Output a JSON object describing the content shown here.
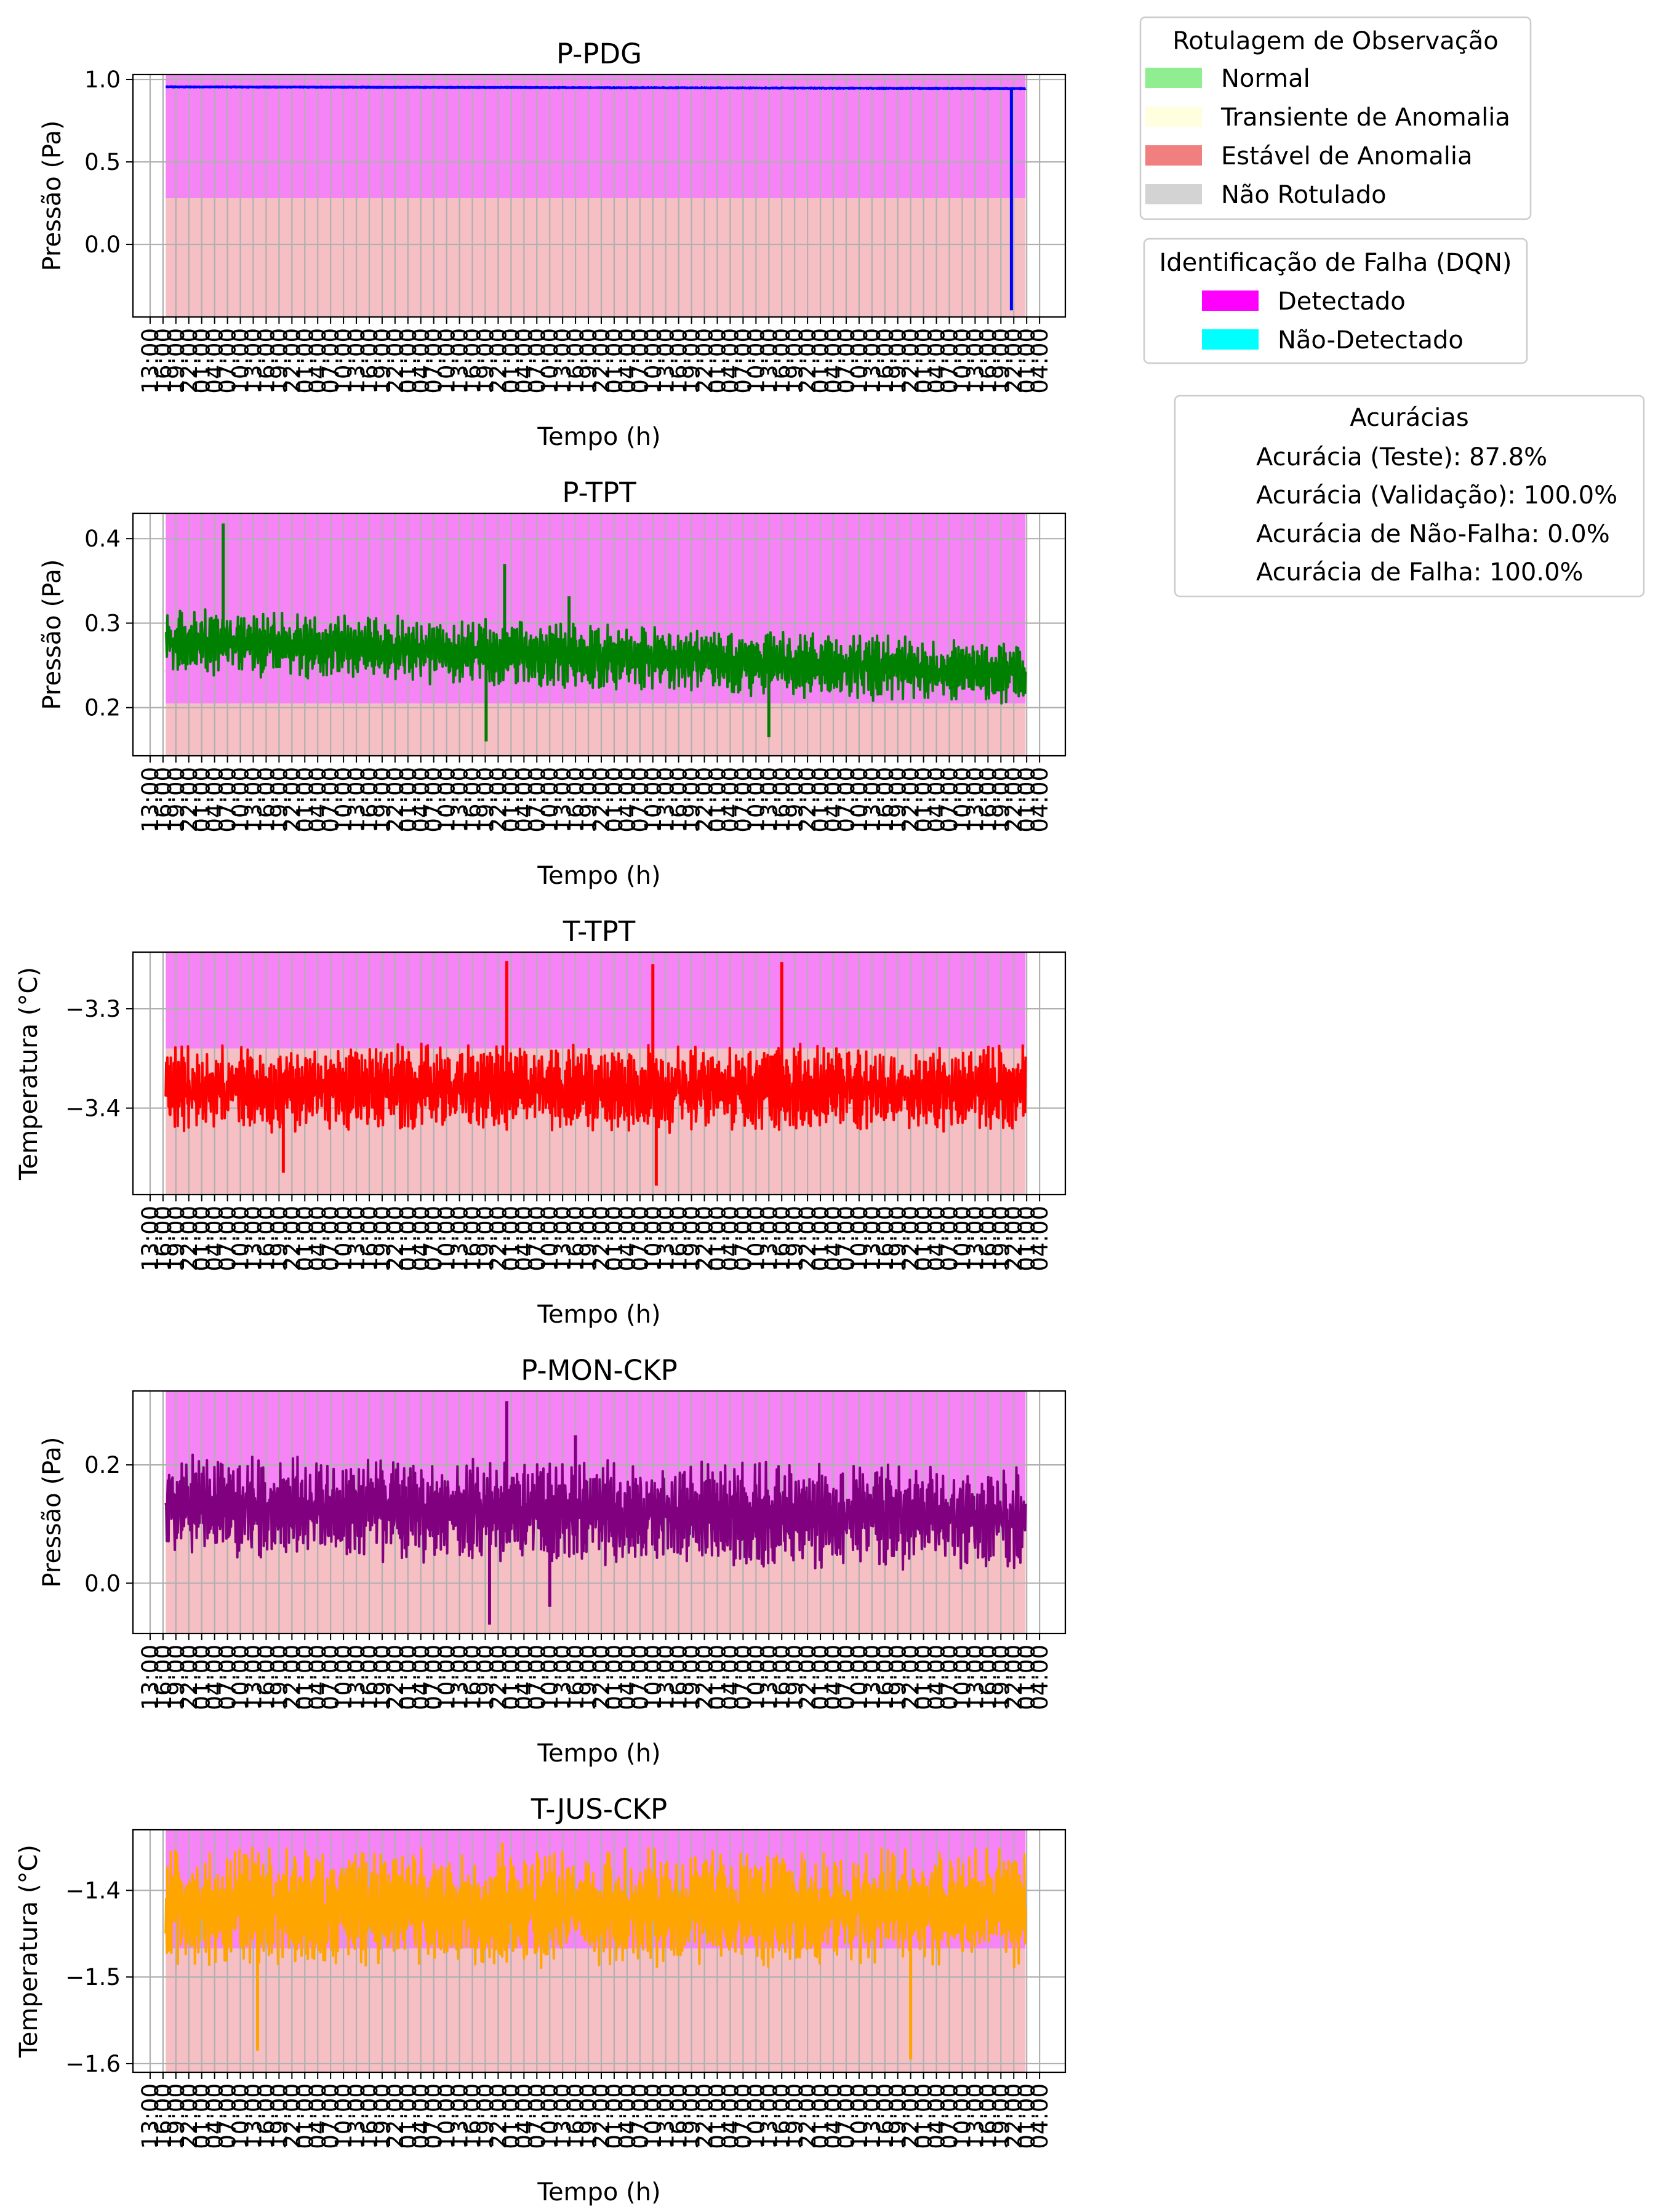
{
  "chart_data": [
    {
      "type": "line",
      "title": "P-PDG",
      "xlabel": "Tempo (h)",
      "ylabel": "Pressão (Pa)",
      "ylim": [
        -0.44,
        1.03
      ],
      "yticks": [
        0.0,
        0.5,
        1.0
      ],
      "ytick_labels": [
        "0.0",
        "0.5",
        "1.0"
      ],
      "color": "#0000ff",
      "observation_boundary": 0.28,
      "series": [
        {
          "x_range": [
            16.62,
            216.75
          ],
          "mean_start": 0.955,
          "mean_end": 0.945,
          "amplitude": 0.003,
          "spikes": [
            {
              "x": 213.45,
              "y": -0.4
            }
          ]
        }
      ]
    },
    {
      "type": "line",
      "title": "P-TPT",
      "xlabel": "Tempo (h)",
      "ylabel": "Pressão (Pa)",
      "ylim": [
        0.143,
        0.43
      ],
      "yticks": [
        0.2,
        0.3,
        0.4
      ],
      "ytick_labels": [
        "0.2",
        "0.3",
        "0.4"
      ],
      "color": "#008000",
      "observation_boundary": 0.205,
      "series": [
        {
          "x_range": [
            16.62,
            216.75
          ],
          "mean_start": 0.28,
          "mean_end": 0.24,
          "amplitude": 0.04,
          "spikes": [
            {
              "x": 30.0,
              "y": 0.418
            },
            {
              "x": 95.5,
              "y": 0.37
            },
            {
              "x": 110.5,
              "y": 0.332
            },
            {
              "x": 91.2,
              "y": 0.16
            },
            {
              "x": 157.0,
              "y": 0.165
            }
          ]
        }
      ]
    },
    {
      "type": "line",
      "title": "T-TPT",
      "xlabel": "Tempo (h)",
      "ylabel": "Temperatura (°C)",
      "ylim": [
        -3.487,
        -3.243
      ],
      "yticks": [
        -3.4,
        -3.3
      ],
      "ytick_labels": [
        "−3.4",
        "−3.3"
      ],
      "color": "#ff0000",
      "observation_boundary": -3.34,
      "series": [
        {
          "x_range": [
            16.62,
            216.75
          ],
          "mean_start": -3.38,
          "mean_end": -3.38,
          "amplitude": 0.045,
          "spikes": [
            {
              "x": 96.0,
              "y": -3.252
            },
            {
              "x": 160.0,
              "y": -3.253
            },
            {
              "x": 130.0,
              "y": -3.255
            },
            {
              "x": 130.8,
              "y": -3.478
            },
            {
              "x": 44.0,
              "y": -3.465
            }
          ]
        }
      ]
    },
    {
      "type": "line",
      "title": "P-MON-CKP",
      "xlabel": "Tempo (h)",
      "ylabel": "Pressão (Pa)",
      "ylim": [
        -0.085,
        0.325
      ],
      "yticks": [
        0.0,
        0.2
      ],
      "ytick_labels": [
        "0.0",
        "0.2"
      ],
      "color": "#800080",
      "observation_boundary": 0.11,
      "series": [
        {
          "x_range": [
            16.62,
            216.75
          ],
          "mean_start": 0.13,
          "mean_end": 0.11,
          "amplitude": 0.09,
          "spikes": [
            {
              "x": 96.0,
              "y": 0.308
            },
            {
              "x": 92.0,
              "y": -0.07
            },
            {
              "x": 112.0,
              "y": 0.25
            },
            {
              "x": 106.0,
              "y": -0.04
            }
          ]
        }
      ]
    },
    {
      "type": "line",
      "title": "T-JUS-CKP",
      "xlabel": "Tempo (h)",
      "ylabel": "Temperatura (°C)",
      "ylim": [
        -1.61,
        -1.33
      ],
      "yticks": [
        -1.6,
        -1.5,
        -1.4
      ],
      "ytick_labels": [
        "−1.6",
        "−1.5",
        "−1.4"
      ],
      "color": "#ffa500",
      "observation_boundary": -1.467,
      "series": [
        {
          "x_range": [
            16.62,
            216.75
          ],
          "mean_start": -1.42,
          "mean_end": -1.42,
          "amplitude": 0.07,
          "spikes": [
            {
              "x": 190.0,
              "y": -1.595
            },
            {
              "x": 38.0,
              "y": -1.585
            },
            {
              "x": 95.0,
              "y": -1.345
            }
          ]
        }
      ]
    }
  ],
  "x_axis": {
    "range": [
      9.0,
      226.0
    ],
    "ticks": [
      13,
      16,
      19,
      22,
      25,
      28,
      31,
      34,
      37,
      40,
      43,
      46,
      49,
      52,
      55,
      58,
      61,
      64,
      67,
      70,
      73,
      76,
      79,
      82,
      85,
      88,
      91,
      94,
      97,
      100,
      103,
      106,
      109,
      112,
      115,
      118,
      121,
      124,
      127,
      130,
      133,
      136,
      139,
      142,
      145,
      148,
      151,
      154,
      157,
      160,
      163,
      166,
      169,
      172,
      175,
      178,
      181,
      184,
      187,
      190,
      193,
      196,
      199,
      202,
      205,
      208,
      211,
      214,
      217,
      220
    ],
    "tick_labels": [
      "13:00",
      "16:00",
      "19:00",
      "22:00",
      "01:00",
      "04:00",
      "07:00",
      "10:00",
      "13:00",
      "16:00",
      "19:00",
      "22:00",
      "01:00",
      "04:00",
      "07:00",
      "10:00",
      "13:00",
      "16:00",
      "19:00",
      "22:00",
      "01:00",
      "04:00",
      "07:00",
      "10:00",
      "13:00",
      "16:00",
      "19:00",
      "22:00",
      "01:00",
      "04:00",
      "07:00",
      "10:00",
      "13:00",
      "16:00",
      "19:00",
      "22:00",
      "01:00",
      "04:00",
      "07:00",
      "10:00",
      "13:00",
      "16:00",
      "19:00",
      "22:00",
      "01:00",
      "04:00",
      "07:00",
      "10:00",
      "13:00",
      "16:00",
      "19:00",
      "22:00",
      "01:00",
      "04:00",
      "07:00",
      "10:00",
      "13:00",
      "16:00",
      "19:00",
      "22:00",
      "01:00",
      "04:00",
      "07:00",
      "10:00",
      "13:00",
      "16:00",
      "19:00",
      "22:00",
      "01:00",
      "04:00"
    ],
    "visible_label_count": 56,
    "shaded_range": [
      16.62,
      216.75
    ],
    "grid": true
  },
  "legend_observation": {
    "title": "Rotulagem de Observação",
    "entries": [
      {
        "label": "Normal",
        "color": "#90ee90"
      },
      {
        "label": "Transiente de Anomalia",
        "color": "#ffffe0"
      },
      {
        "label": "Estável de Anomalia",
        "color": "#f08080"
      },
      {
        "label": "Não Rotulado",
        "color": "#d3d3d3"
      }
    ]
  },
  "legend_fault": {
    "title": "Identificação de Falha (DQN)",
    "entries": [
      {
        "label": "Detectado",
        "color": "#ff00ff"
      },
      {
        "label": "Não-Detectado",
        "color": "#00ffff"
      }
    ]
  },
  "accuracies": {
    "title": "Acurácias",
    "lines": [
      "Acurácia (Teste): 87.8%",
      "Acurácia (Validação): 100.0%",
      "Acurácia de Não-Falha: 0.0%",
      "Acurácia de Falha: 100.0%"
    ]
  },
  "colors": {
    "detected_band": "#f684f6",
    "anomaly_band": "#f5bfc4",
    "grid": "#b0b0b0"
  }
}
